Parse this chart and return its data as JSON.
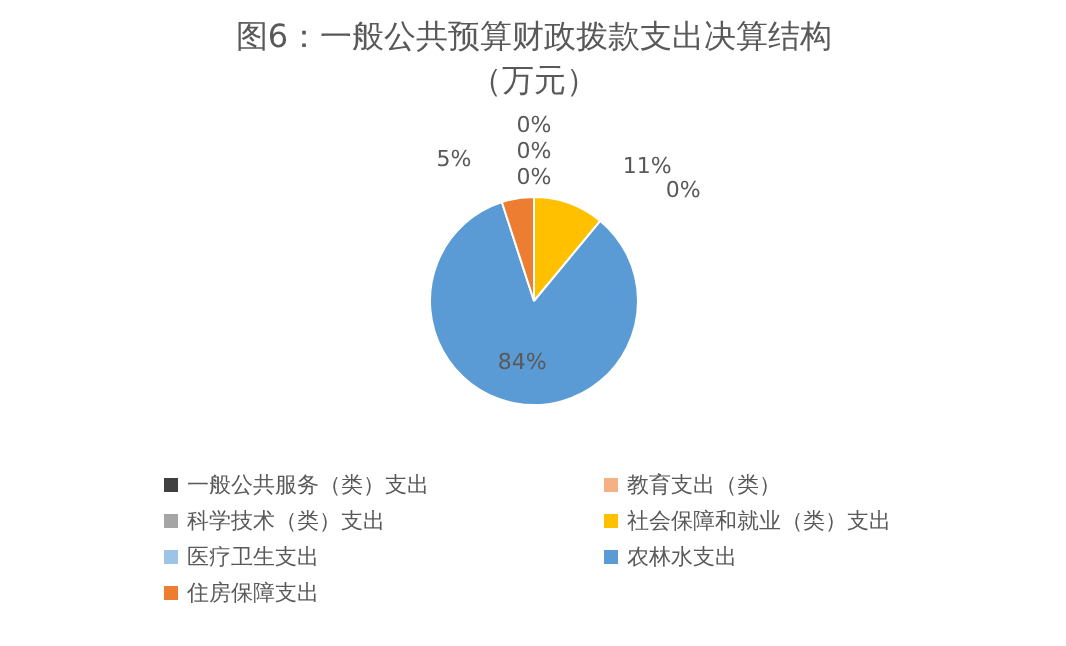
{
  "chart_data": {
    "type": "pie",
    "title": "图6：一般公共预算财政拨款支出决算结构",
    "subtitle": "（万元）",
    "categories": [
      "一般公共服务（类）支出",
      "教育支出（类）",
      "科学技术（类）支出",
      "社会保障和就业（类）支出",
      "医疗卫生支出",
      "农林水支出",
      "住房保障支出"
    ],
    "values": [
      0,
      0,
      0,
      11,
      0,
      84,
      5
    ],
    "value_labels": [
      "0%",
      "0%",
      "0%",
      "11%",
      "0%",
      "84%",
      "5%"
    ],
    "colors": [
      "#404040",
      "#f4b183",
      "#a5a5a5",
      "#ffc000",
      "#9dc3e6",
      "#5b9bd5",
      "#ed7d31"
    ],
    "legend": "bottom"
  }
}
